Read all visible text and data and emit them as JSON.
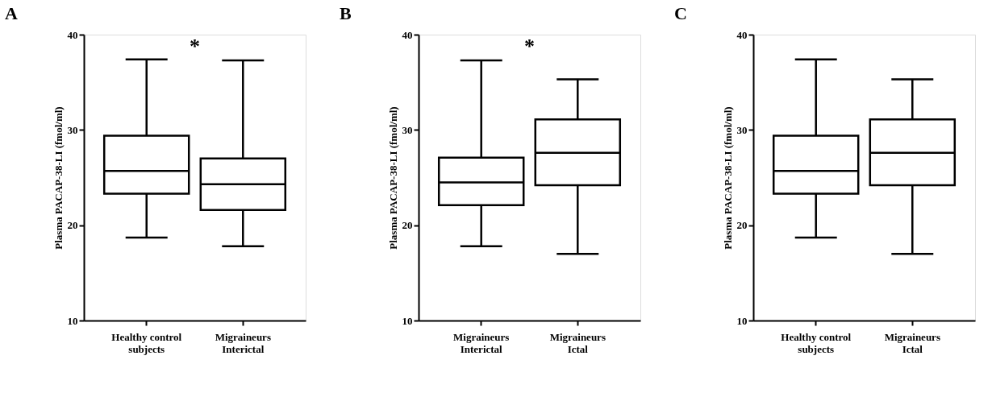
{
  "chart_data": [
    {
      "type": "box",
      "title": "A",
      "ylabel": "Plasma PACAP-38-LI (fmol/ml)",
      "categories": [
        "Healthy control\nsubjects",
        "Migraineurs\nInterictal"
      ],
      "ylim": [
        10,
        40
      ],
      "yticks": [
        10,
        20,
        30,
        40
      ],
      "grid": false,
      "annotations": [
        "*"
      ],
      "boxes": [
        {
          "low": 18.7,
          "q1": 23.3,
          "median": 25.7,
          "q3": 29.4,
          "high": 37.4
        },
        {
          "low": 17.8,
          "q1": 21.6,
          "median": 24.3,
          "q3": 27.0,
          "high": 37.3
        }
      ]
    },
    {
      "type": "box",
      "title": "B",
      "ylabel": "Plasma PACAP-38-LI (fmol/ml)",
      "categories": [
        "Migraineurs\nInterictal",
        "Migraineurs\nIctal"
      ],
      "ylim": [
        10,
        40
      ],
      "yticks": [
        10,
        20,
        30,
        40
      ],
      "grid": false,
      "annotations": [
        "*"
      ],
      "boxes": [
        {
          "low": 17.8,
          "q1": 22.1,
          "median": 24.5,
          "q3": 27.1,
          "high": 37.3
        },
        {
          "low": 17.0,
          "q1": 24.2,
          "median": 27.6,
          "q3": 31.1,
          "high": 35.3
        }
      ]
    },
    {
      "type": "box",
      "title": "C",
      "ylabel": "Plasma PACAP-38-LI (fmol/ml)",
      "categories": [
        "Healthy control\nsubjects",
        "Migraineurs\nIctal"
      ],
      "ylim": [
        10,
        40
      ],
      "yticks": [
        10,
        20,
        30,
        40
      ],
      "grid": false,
      "boxes": [
        {
          "low": 18.7,
          "q1": 23.3,
          "median": 25.7,
          "q3": 29.4,
          "high": 37.4
        },
        {
          "low": 17.0,
          "q1": 24.2,
          "median": 27.6,
          "q3": 31.1,
          "high": 35.3
        }
      ]
    }
  ]
}
